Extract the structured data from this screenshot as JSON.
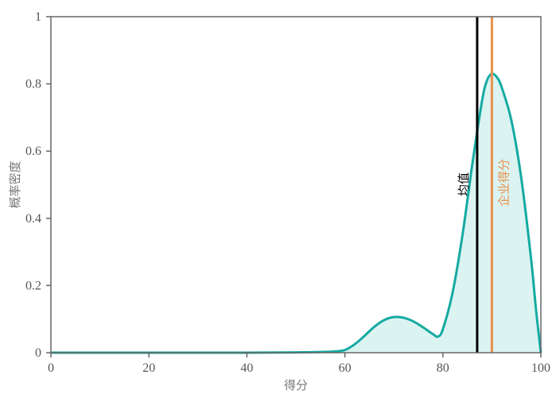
{
  "chart_data": {
    "type": "area",
    "title": "",
    "xlabel": "得分",
    "ylabel": "概率密度",
    "xlim": [
      0,
      100
    ],
    "ylim": [
      0,
      1
    ],
    "x_ticks": [
      "0",
      "20",
      "40",
      "60",
      "80",
      "100"
    ],
    "y_ticks": [
      "0",
      "0.2",
      "0.4",
      "0.6",
      "0.8",
      "1"
    ],
    "grid": false,
    "legend": "none",
    "series": [
      {
        "x": [
          0,
          10,
          20,
          30,
          40,
          50,
          55,
          58,
          60,
          62,
          64,
          66,
          68,
          70,
          72,
          74,
          76,
          78,
          79,
          80,
          82,
          84,
          86,
          88,
          89,
          90,
          91,
          92,
          94,
          96,
          98,
          99,
          100
        ],
        "y": [
          0,
          0,
          0,
          0,
          0,
          0.001,
          0.002,
          0.004,
          0.008,
          0.025,
          0.05,
          0.077,
          0.097,
          0.106,
          0.104,
          0.093,
          0.075,
          0.055,
          0.048,
          0.07,
          0.18,
          0.35,
          0.56,
          0.75,
          0.81,
          0.83,
          0.82,
          0.79,
          0.69,
          0.52,
          0.28,
          0.13,
          0.0
        ]
      }
    ],
    "vlines": [
      {
        "label": "均值",
        "x": 87,
        "color": "#000000"
      },
      {
        "label": "企业得分",
        "x": 90,
        "color": "#e8914a"
      }
    ],
    "colors": {
      "curve": "#14aaa2",
      "fill": "#dbf3f1",
      "axis": "#666666"
    }
  }
}
